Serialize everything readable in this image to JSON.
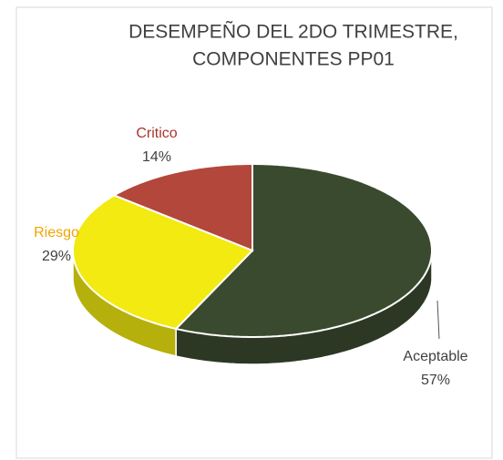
{
  "chart_data": {
    "type": "pie",
    "title": [
      "DESEMPEÑO DEL 2DO TRIMESTRE,",
      "COMPONENTES PP01"
    ],
    "categories": [
      "Aceptable",
      "Riesgo",
      "Critico"
    ],
    "values": [
      57,
      29,
      14
    ],
    "value_labels": [
      "57%",
      "29%",
      "14%"
    ],
    "colors": [
      "#3a4a2e",
      "#f2ea10",
      "#b3473b"
    ],
    "label_colors": [
      "#404040",
      "#f0a500",
      "#a8352c"
    ]
  }
}
